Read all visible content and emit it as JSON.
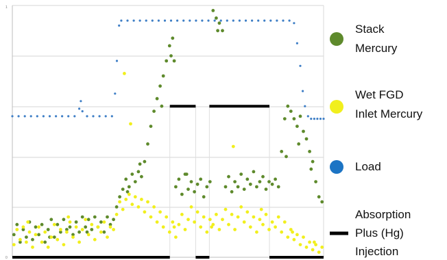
{
  "chart_data": {
    "type": "scatter",
    "title": "",
    "xlabel": "",
    "ylabel": "",
    "grid": true,
    "legend_position": "right",
    "y_tick_labels": [
      "0",
      "1"
    ],
    "xlim": [
      0,
      100
    ],
    "ylim": [
      0,
      100
    ],
    "series": [
      {
        "name": "Stack Mercury",
        "color": "#5e8a2c",
        "marker": "dot",
        "points": [
          [
            0.5,
            9
          ],
          [
            1.5,
            13
          ],
          [
            2.5,
            6
          ],
          [
            3.5,
            11
          ],
          [
            4.5,
            8
          ],
          [
            5.5,
            14
          ],
          [
            6.5,
            7
          ],
          [
            7.5,
            12
          ],
          [
            8.5,
            9
          ],
          [
            9.5,
            13
          ],
          [
            10.5,
            6
          ],
          [
            11.5,
            11
          ],
          [
            12.5,
            15
          ],
          [
            13.5,
            8
          ],
          [
            14.5,
            13
          ],
          [
            15.5,
            10
          ],
          [
            16.5,
            15
          ],
          [
            17.5,
            11
          ],
          [
            18.5,
            12
          ],
          [
            19.5,
            9
          ],
          [
            20.5,
            14
          ],
          [
            21.5,
            10
          ],
          [
            22.5,
            16
          ],
          [
            23.5,
            12
          ],
          [
            24.5,
            15
          ],
          [
            25.5,
            11
          ],
          [
            26.5,
            16
          ],
          [
            27.5,
            12
          ],
          [
            28.5,
            14
          ],
          [
            29.5,
            10
          ],
          [
            30.5,
            16
          ],
          [
            31.5,
            13
          ],
          [
            32.5,
            15
          ],
          [
            33.5,
            20
          ],
          [
            34.5,
            24
          ],
          [
            35.5,
            27
          ],
          [
            36.5,
            31
          ],
          [
            37.5,
            28
          ],
          [
            38.5,
            33
          ],
          [
            39.5,
            30
          ],
          [
            40.5,
            34
          ],
          [
            41.5,
            32
          ],
          [
            42.5,
            38
          ],
          [
            43.5,
            45
          ],
          [
            44.5,
            52
          ],
          [
            45.5,
            58
          ],
          [
            46.5,
            63
          ],
          [
            47.5,
            68
          ],
          [
            48.5,
            72
          ],
          [
            49.5,
            78
          ],
          [
            50.5,
            84
          ],
          [
            51.5,
            87
          ],
          [
            52.5,
            28
          ],
          [
            53.5,
            31
          ],
          [
            54.5,
            25
          ],
          [
            55.5,
            33
          ],
          [
            56.5,
            27
          ],
          [
            57.5,
            30
          ],
          [
            58.5,
            26
          ],
          [
            59.5,
            29
          ],
          [
            60.5,
            31
          ],
          [
            61.5,
            24
          ],
          [
            62.5,
            28
          ],
          [
            63.5,
            30
          ],
          [
            64.5,
            98
          ],
          [
            65.5,
            95
          ],
          [
            66.5,
            93
          ],
          [
            67.5,
            90
          ],
          [
            68.5,
            28
          ],
          [
            69.5,
            32
          ],
          [
            70.5,
            26
          ],
          [
            71.5,
            30
          ],
          [
            72.5,
            28
          ],
          [
            73.5,
            33
          ],
          [
            74.5,
            27
          ],
          [
            75.5,
            31
          ],
          [
            76.5,
            29
          ],
          [
            77.5,
            34
          ],
          [
            78.5,
            28
          ],
          [
            79.5,
            30
          ],
          [
            80.5,
            32
          ],
          [
            81.5,
            27
          ],
          [
            82.5,
            30
          ],
          [
            83.5,
            29
          ],
          [
            84.5,
            31
          ],
          [
            85.5,
            28
          ],
          [
            86.5,
            42
          ],
          [
            87.5,
            55
          ],
          [
            88.5,
            60
          ],
          [
            89.5,
            58
          ],
          [
            90.5,
            55
          ],
          [
            91.5,
            52
          ],
          [
            92.5,
            56
          ],
          [
            93.5,
            50
          ],
          [
            94.5,
            47
          ],
          [
            95.5,
            42
          ],
          [
            96.5,
            38
          ],
          [
            97.5,
            30
          ],
          [
            98.5,
            24
          ],
          [
            99.5,
            22
          ],
          [
            12,
            8
          ],
          [
            24,
            10
          ],
          [
            37,
            26
          ],
          [
            41,
            37
          ],
          [
            48,
            60
          ],
          [
            51,
            80
          ],
          [
            52,
            78
          ],
          [
            56,
            33
          ],
          [
            66,
            90
          ],
          [
            88,
            40
          ],
          [
            92,
            45
          ],
          [
            96,
            35
          ]
        ]
      },
      {
        "name": "Wet FGD Inlet Mercury",
        "color": "#f1ef1d",
        "marker": "dot",
        "points": [
          [
            0.5,
            5
          ],
          [
            1.5,
            11
          ],
          [
            2.5,
            7
          ],
          [
            3.5,
            12
          ],
          [
            4.5,
            6
          ],
          [
            5.5,
            10
          ],
          [
            6.5,
            4
          ],
          [
            7.5,
            9
          ],
          [
            8.5,
            12
          ],
          [
            9.5,
            6
          ],
          [
            10.5,
            10
          ],
          [
            11.5,
            4
          ],
          [
            12.5,
            8
          ],
          [
            13.5,
            13
          ],
          [
            14.5,
            7
          ],
          [
            15.5,
            11
          ],
          [
            16.5,
            5
          ],
          [
            17.5,
            10
          ],
          [
            18.5,
            14
          ],
          [
            19.5,
            8
          ],
          [
            20.5,
            12
          ],
          [
            21.5,
            6
          ],
          [
            22.5,
            11
          ],
          [
            23.5,
            15
          ],
          [
            24.5,
            9
          ],
          [
            25.5,
            13
          ],
          [
            26.5,
            7
          ],
          [
            27.5,
            12
          ],
          [
            28.5,
            10
          ],
          [
            29.5,
            14
          ],
          [
            30.5,
            8
          ],
          [
            31.5,
            12
          ],
          [
            32.5,
            11
          ],
          [
            33.5,
            17
          ],
          [
            34.5,
            22
          ],
          [
            35.5,
            19
          ],
          [
            36.5,
            23
          ],
          [
            37.5,
            25
          ],
          [
            38.5,
            21
          ],
          [
            39.5,
            24
          ],
          [
            40.5,
            20
          ],
          [
            41.5,
            23
          ],
          [
            42.5,
            18
          ],
          [
            43.5,
            22
          ],
          [
            44.5,
            16
          ],
          [
            45.5,
            20
          ],
          [
            46.5,
            14
          ],
          [
            47.5,
            18
          ],
          [
            48.5,
            12
          ],
          [
            49.5,
            16
          ],
          [
            50.5,
            10
          ],
          [
            51.5,
            14
          ],
          [
            52.5,
            8
          ],
          [
            53.5,
            13
          ],
          [
            54.5,
            17
          ],
          [
            55.5,
            11
          ],
          [
            56.5,
            15
          ],
          [
            57.5,
            20
          ],
          [
            58.5,
            14
          ],
          [
            59.5,
            18
          ],
          [
            60.5,
            12
          ],
          [
            61.5,
            16
          ],
          [
            62.5,
            10
          ],
          [
            63.5,
            15
          ],
          [
            64.5,
            13
          ],
          [
            65.5,
            17
          ],
          [
            66.5,
            11
          ],
          [
            67.5,
            15
          ],
          [
            68.5,
            19
          ],
          [
            69.5,
            13
          ],
          [
            70.5,
            17
          ],
          [
            71.5,
            11
          ],
          [
            72.5,
            16
          ],
          [
            73.5,
            20
          ],
          [
            74.5,
            14
          ],
          [
            75.5,
            18
          ],
          [
            76.5,
            12
          ],
          [
            77.5,
            16
          ],
          [
            78.5,
            10
          ],
          [
            79.5,
            15
          ],
          [
            80.5,
            13
          ],
          [
            81.5,
            17
          ],
          [
            82.5,
            11
          ],
          [
            83.5,
            14
          ],
          [
            84.5,
            12
          ],
          [
            85.5,
            16
          ],
          [
            86.5,
            10
          ],
          [
            87.5,
            14
          ],
          [
            88.5,
            8
          ],
          [
            89.5,
            11
          ],
          [
            90.5,
            7
          ],
          [
            91.5,
            9
          ],
          [
            92.5,
            5
          ],
          [
            93.5,
            8
          ],
          [
            94.5,
            4
          ],
          [
            95.5,
            6
          ],
          [
            96.5,
            3
          ],
          [
            97.5,
            5
          ],
          [
            98.5,
            2
          ],
          [
            99.5,
            4
          ],
          [
            5,
            14
          ],
          [
            18,
            16
          ],
          [
            36,
            73
          ],
          [
            38,
            53
          ],
          [
            52,
            12
          ],
          [
            64,
            12
          ],
          [
            71,
            44
          ],
          [
            80,
            19
          ],
          [
            90,
            10
          ],
          [
            97,
            6
          ]
        ]
      },
      {
        "name": "Load",
        "color": "#3f7fc6",
        "marker": "dot",
        "points": [
          [
            0,
            56
          ],
          [
            2,
            56
          ],
          [
            4,
            56
          ],
          [
            6,
            56
          ],
          [
            8,
            56
          ],
          [
            10,
            56
          ],
          [
            12,
            56
          ],
          [
            14,
            56
          ],
          [
            16,
            56
          ],
          [
            18,
            56
          ],
          [
            20,
            56
          ],
          [
            21.5,
            59
          ],
          [
            22,
            62
          ],
          [
            22.5,
            58
          ],
          [
            24,
            56
          ],
          [
            26,
            56
          ],
          [
            28,
            56
          ],
          [
            30,
            56
          ],
          [
            32,
            56
          ],
          [
            33,
            65
          ],
          [
            33.6,
            78
          ],
          [
            34.3,
            92
          ],
          [
            35,
            94
          ],
          [
            37,
            94
          ],
          [
            39,
            94
          ],
          [
            41,
            94
          ],
          [
            43,
            94
          ],
          [
            45,
            94
          ],
          [
            47,
            94
          ],
          [
            49,
            94
          ],
          [
            51,
            94
          ],
          [
            53,
            94
          ],
          [
            55,
            94
          ],
          [
            57,
            94
          ],
          [
            59,
            94
          ],
          [
            61,
            94
          ],
          [
            63,
            94
          ],
          [
            65,
            94
          ],
          [
            67,
            94
          ],
          [
            69,
            94
          ],
          [
            71,
            94
          ],
          [
            73,
            94
          ],
          [
            75,
            94
          ],
          [
            77,
            94
          ],
          [
            79,
            94
          ],
          [
            81,
            94
          ],
          [
            83,
            94
          ],
          [
            85,
            94
          ],
          [
            87,
            94
          ],
          [
            89,
            94
          ],
          [
            90.5,
            93
          ],
          [
            91.5,
            85
          ],
          [
            92.5,
            76
          ],
          [
            93.3,
            66
          ],
          [
            94,
            60
          ],
          [
            95,
            56
          ],
          [
            96,
            55
          ],
          [
            97,
            55
          ],
          [
            98,
            55
          ],
          [
            99,
            55
          ],
          [
            100,
            55
          ]
        ]
      },
      {
        "name": "Absorption Plus (Hg) Injection",
        "color": "#000000",
        "marker": "segment",
        "segments": [
          [
            [
              0,
              0
            ],
            [
              50.6,
              0
            ]
          ],
          [
            [
              50.6,
              60
            ],
            [
              58.9,
              60
            ]
          ],
          [
            [
              58.9,
              0
            ],
            [
              63.3,
              0
            ]
          ],
          [
            [
              63.3,
              60
            ],
            [
              82.6,
              60
            ]
          ],
          [
            [
              82.6,
              0
            ],
            [
              100,
              0
            ]
          ]
        ]
      }
    ],
    "legend": [
      {
        "label_lines": [
          "Stack",
          "Mercury"
        ],
        "color": "#5e8a2c",
        "marker": "circle"
      },
      {
        "label_lines": [
          "Wet FGD",
          "Inlet Mercury"
        ],
        "color": "#f1ef1d",
        "marker": "circle"
      },
      {
        "label_lines": [
          "Load"
        ],
        "color": "#1c74c4",
        "marker": "circle"
      },
      {
        "label_lines": [
          "Absorption",
          "Plus (Hg)",
          "Injection"
        ],
        "color": "#000000",
        "marker": "line"
      }
    ]
  }
}
